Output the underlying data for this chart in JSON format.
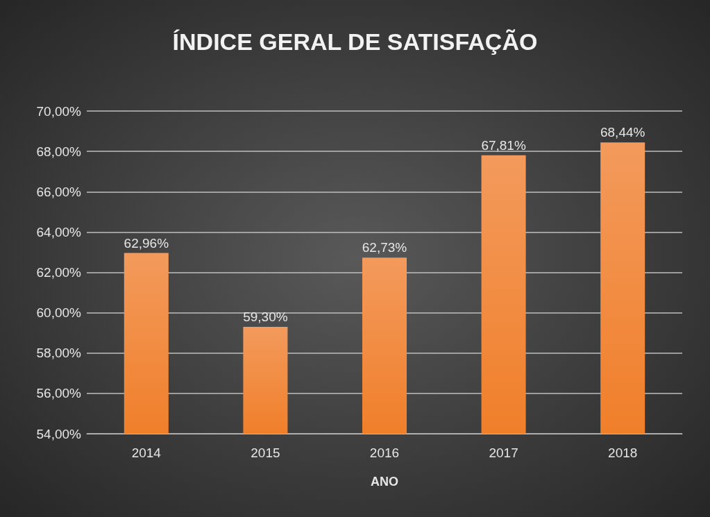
{
  "chart_data": {
    "type": "bar",
    "title": "ÍNDICE GERAL DE SATISFAÇÃO",
    "xlabel": "ANO",
    "categories": [
      "2014",
      "2015",
      "2016",
      "2017",
      "2018"
    ],
    "values": [
      62.96,
      59.3,
      62.73,
      67.81,
      68.44
    ],
    "value_labels": [
      "62,96%",
      "59,30%",
      "62,73%",
      "67,81%",
      "68,44%"
    ],
    "color": "#f07f2a",
    "ylim": [
      54,
      70
    ],
    "yticks": [
      {
        "value": 54,
        "label": "54,00%"
      },
      {
        "value": 56,
        "label": "56,00%"
      },
      {
        "value": 58,
        "label": "58,00%"
      },
      {
        "value": 60,
        "label": "60,00%"
      },
      {
        "value": 62,
        "label": "62,00%"
      },
      {
        "value": 64,
        "label": "64,00%"
      },
      {
        "value": 66,
        "label": "66,00%"
      },
      {
        "value": 68,
        "label": "68,00%"
      },
      {
        "value": 70,
        "label": "70,00%"
      }
    ],
    "grid": true
  }
}
